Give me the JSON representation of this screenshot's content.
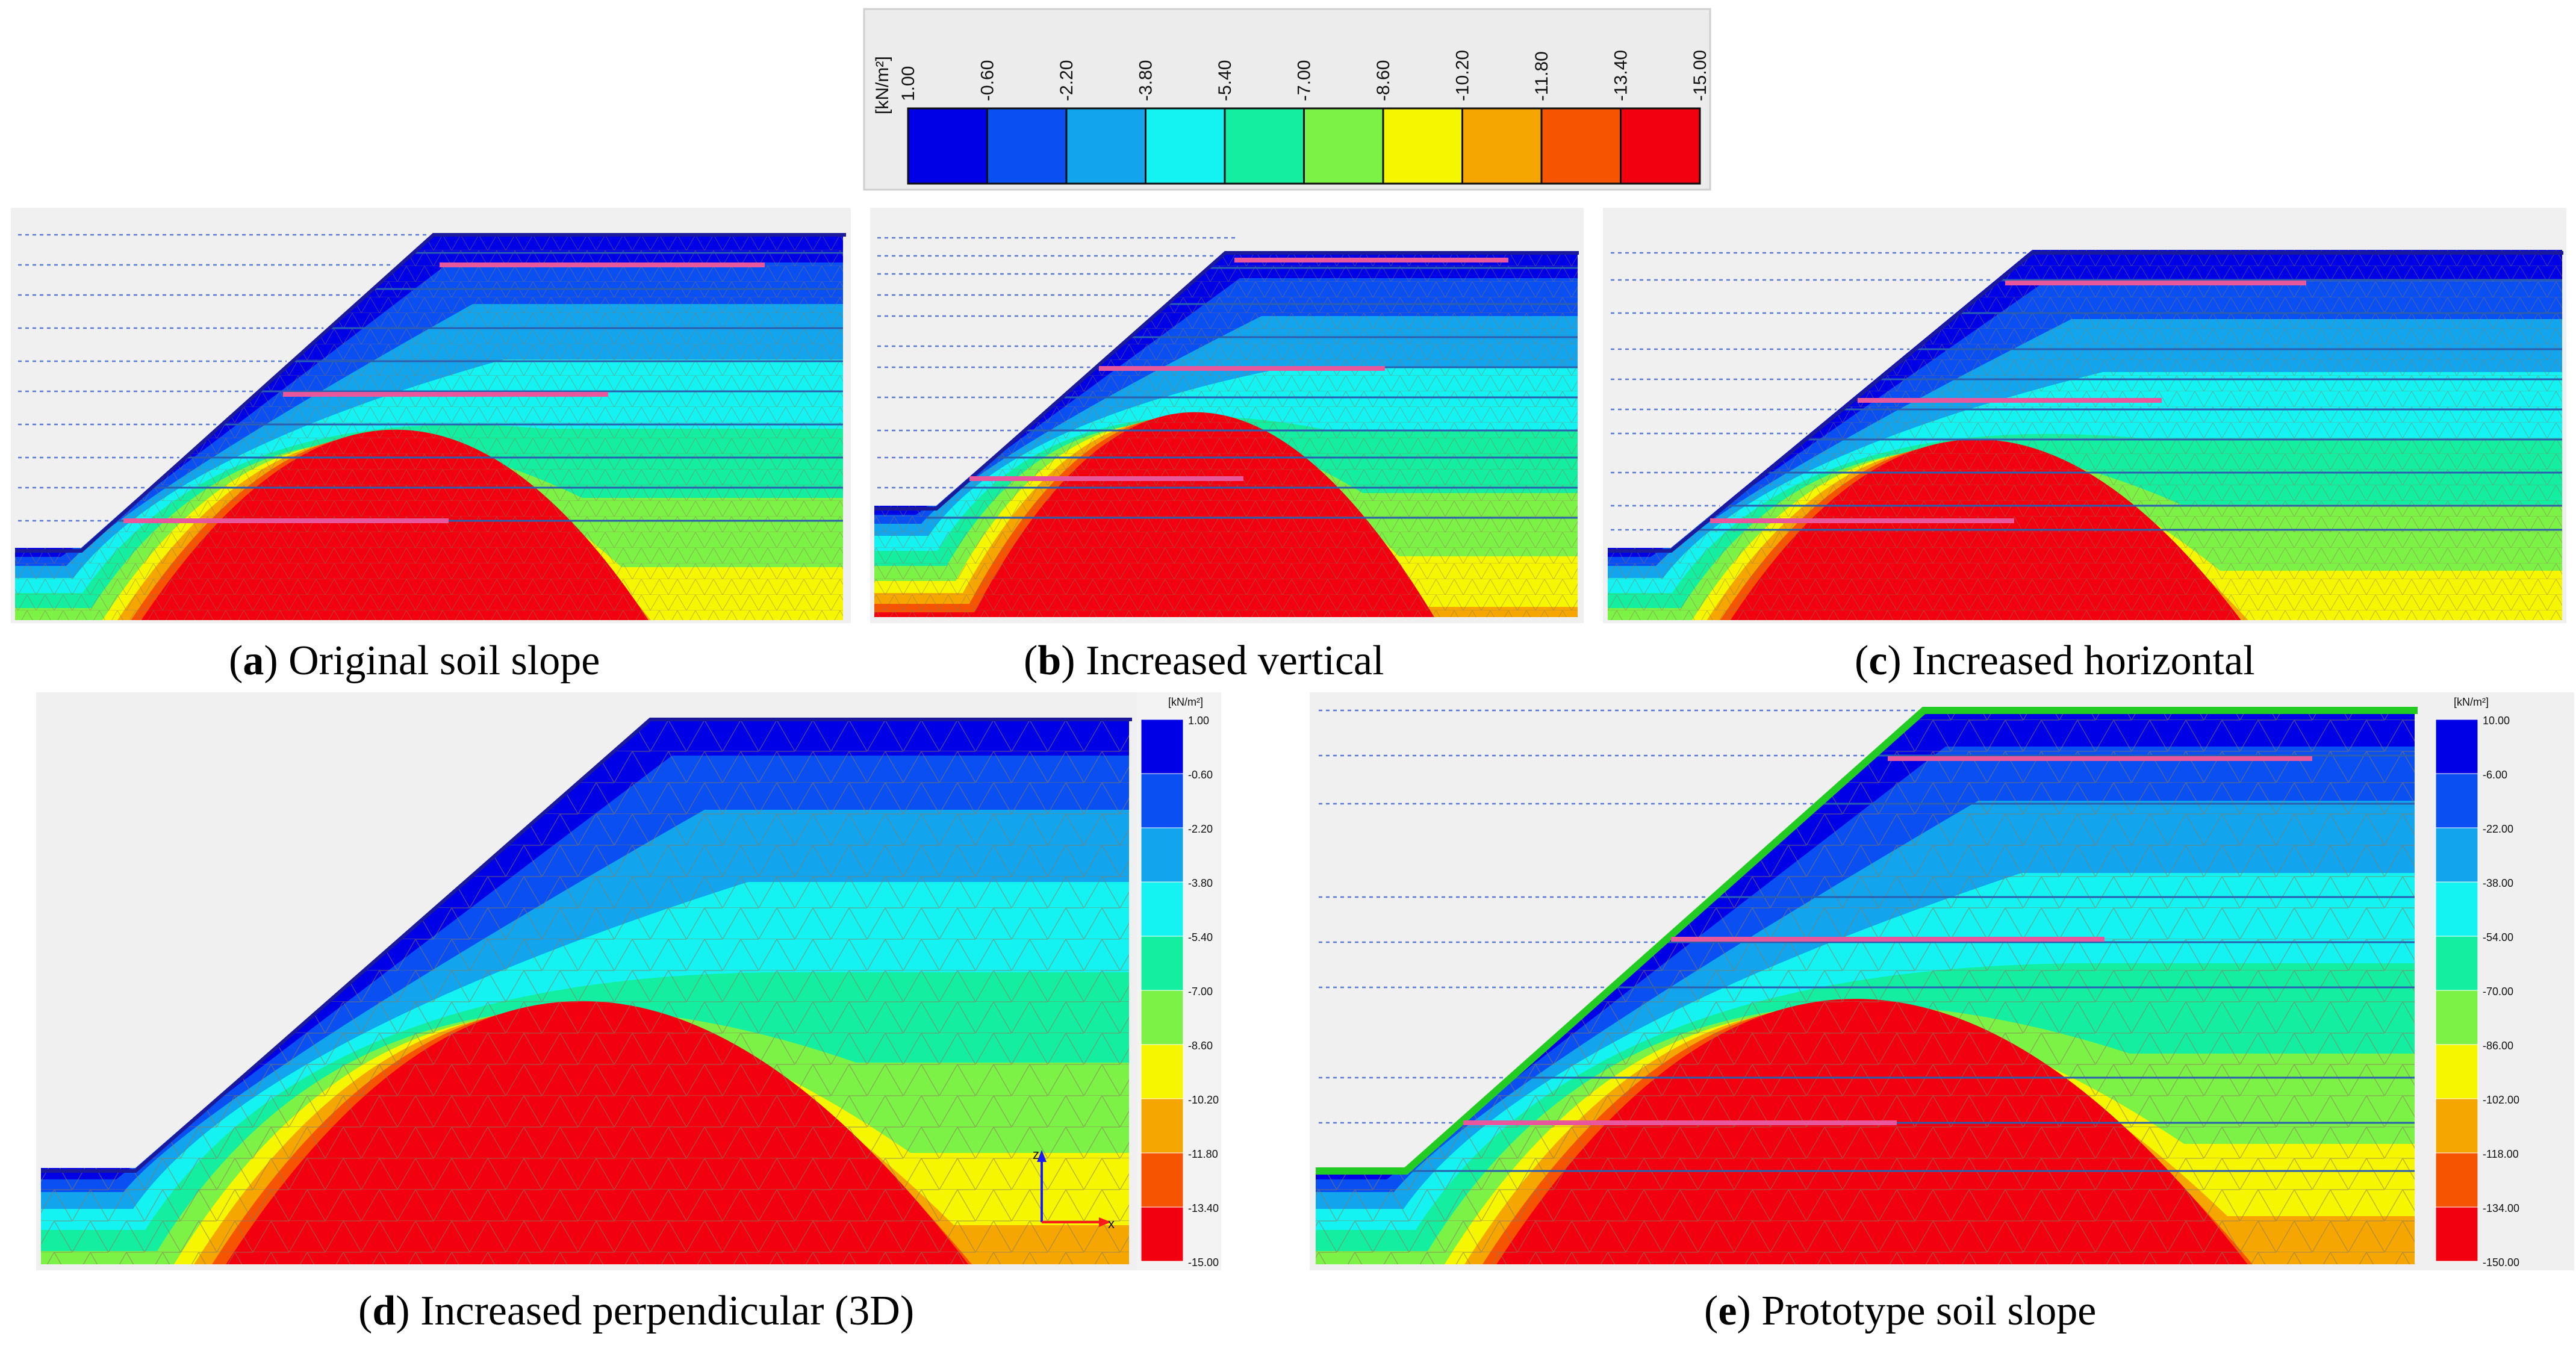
{
  "top_legend": {
    "unit": "[kN/m²]",
    "ticks": [
      "1.00",
      "-0.60",
      "-2.20",
      "-3.80",
      "-5.40",
      "-7.00",
      "-8.60",
      "-10.20",
      "-11.80",
      "-13.40",
      "-15.00"
    ]
  },
  "colors": {
    "scale": [
      "#0000e6",
      "#0a4ff2",
      "#12a4ec",
      "#14f2f2",
      "#14eea0",
      "#7cf246",
      "#f6f600",
      "#f6a600",
      "#f65400",
      "#f20010"
    ],
    "anchor": "#e8579c",
    "facing": "#22cc22",
    "grid": "#8a7a5a"
  },
  "panels": [
    {
      "letter": "a",
      "title": "Original soil slope"
    },
    {
      "letter": "b",
      "title": "Increased vertical"
    },
    {
      "letter": "c",
      "title": "Increased horizontal"
    },
    {
      "letter": "d",
      "title": "Increased perpendicular (3D)"
    },
    {
      "letter": "e",
      "title": "Prototype soil slope"
    }
  ],
  "legend_d": {
    "unit": "[kN/m²]",
    "ticks": [
      "1.00",
      "-0.60",
      "-2.20",
      "-3.80",
      "-5.40",
      "-7.00",
      "-8.60",
      "-10.20",
      "-11.80",
      "-13.40",
      "-15.00"
    ]
  },
  "legend_e": {
    "unit": "[kN/m²]",
    "ticks": [
      "10.00",
      "-6.00",
      "-22.00",
      "-38.00",
      "-54.00",
      "-70.00",
      "-86.00",
      "-102.00",
      "-118.00",
      "-134.00",
      "-150.00"
    ]
  },
  "axis_d": {
    "z": "z",
    "x": "x"
  }
}
